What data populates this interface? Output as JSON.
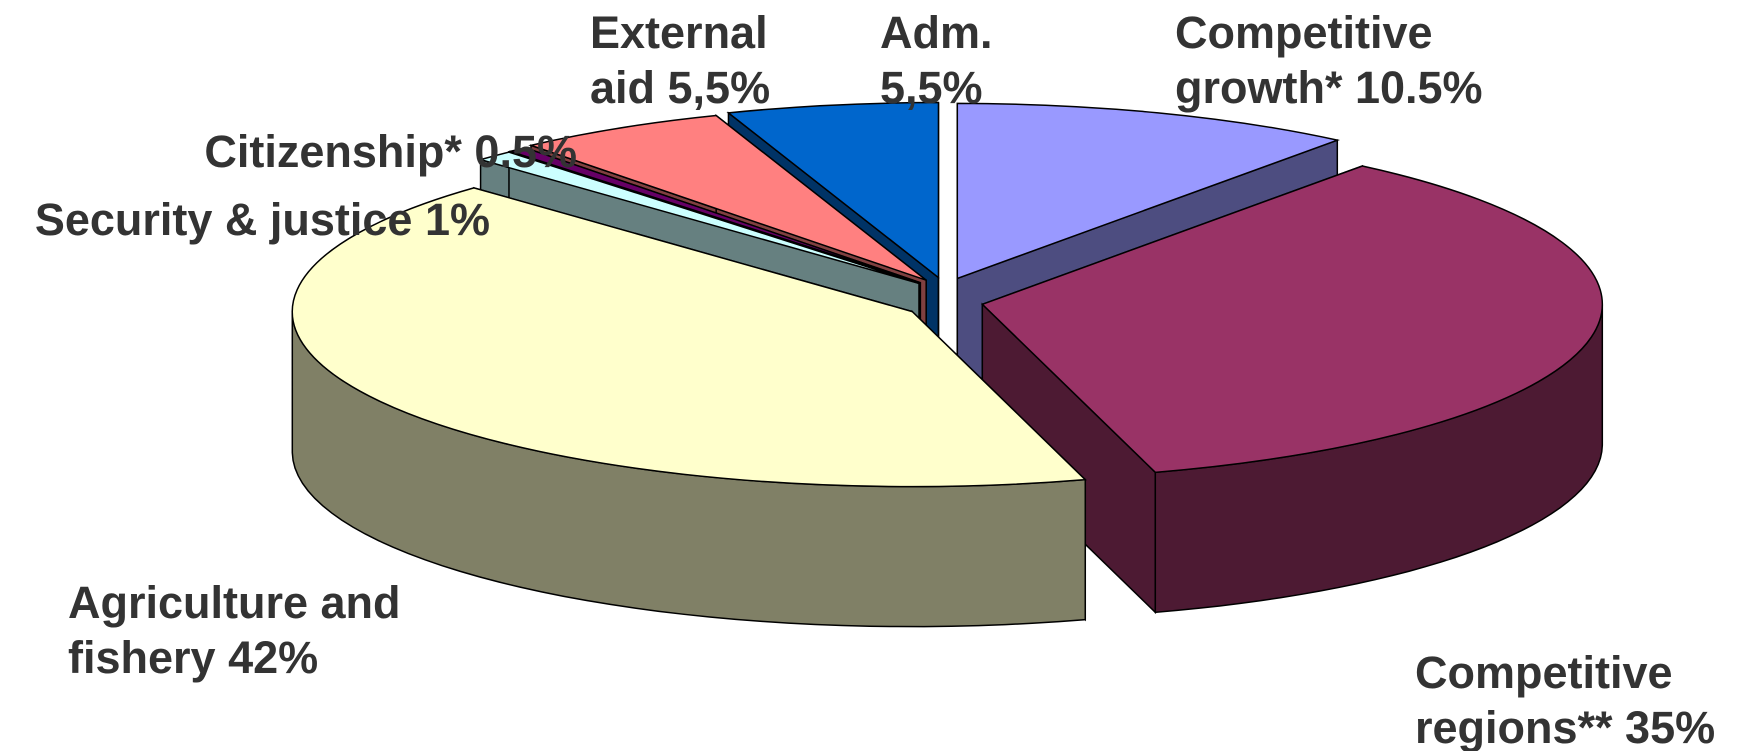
{
  "chart_data": {
    "type": "pie",
    "style": "3d-exploded",
    "slices": [
      {
        "name": "Competitive growth*",
        "value": 10.5,
        "label_lines": [
          "Competitive",
          "growth* 10.5%"
        ],
        "top_color": "#9999ff",
        "side_color": "#4d4d80"
      },
      {
        "name": "Competitive regions**",
        "value": 35,
        "label_lines": [
          "Competitive",
          "regions** 35%"
        ],
        "top_color": "#993366",
        "side_color": "#4d1a33"
      },
      {
        "name": "Agriculture and fishery",
        "value": 42,
        "label_lines": [
          "Agriculture and",
          "fishery 42%"
        ],
        "top_color": "#ffffcc",
        "side_color": "#808066"
      },
      {
        "name": "Security & justice",
        "value": 1,
        "label_lines": [
          "Security & justice 1%"
        ],
        "top_color": "#ccffff",
        "side_color": "#668080"
      },
      {
        "name": "Citizenship*",
        "value": 0.5,
        "label_lines": [
          "Citizenship* 0.5%"
        ],
        "top_color": "#660066",
        "side_color": "#330033"
      },
      {
        "name": "External aid",
        "value": 5.5,
        "label_lines": [
          "External",
          "aid 5,5%"
        ],
        "top_color": "#ff8080",
        "side_color": "#804040"
      },
      {
        "name": "Adm.",
        "value": 5.5,
        "label_lines": [
          "Adm.",
          "5,5%"
        ],
        "top_color": "#0066cc",
        "side_color": "#003366"
      }
    ]
  }
}
